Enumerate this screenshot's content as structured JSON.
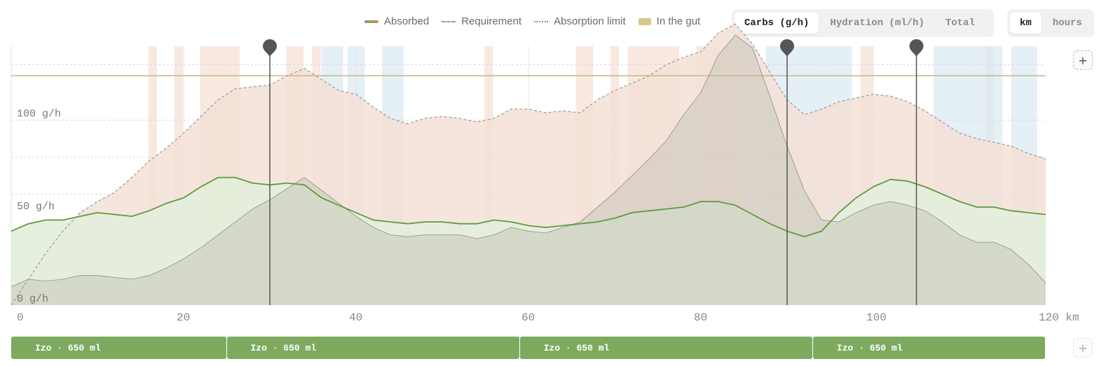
{
  "legend": {
    "absorbed": "Absorbed",
    "requirement": "Requirement",
    "absorption_limit": "Absorption limit",
    "in_the_gut": "In the gut"
  },
  "metric_tabs": [
    {
      "label": "Carbs (g/h)",
      "active": true
    },
    {
      "label": "Hydration (ml/h)",
      "active": false
    },
    {
      "label": "Total",
      "active": false
    }
  ],
  "axis_tabs": [
    {
      "label": "km",
      "active": true
    },
    {
      "label": "hours",
      "active": false
    }
  ],
  "add_label": "+",
  "colors": {
    "absorbed_line": "#5e9a3c",
    "requirement_line": "#9a9a9a",
    "gut_fill": "#bfbfb4",
    "requirement_fill": "#f3e0d6",
    "absorbed_fill": "#e3eedb",
    "limit_line": "#c9b58a",
    "pin": "#555555",
    "hot_band": "#f6e2d6",
    "cool_band": "#dceaf3",
    "bottle": "#7daa5e"
  },
  "chart_data": {
    "type": "area",
    "xlim": [
      0,
      120
    ],
    "ylim": [
      0,
      140
    ],
    "x_unit": "km",
    "x_ticks": [
      {
        "value": 0,
        "label": "0"
      },
      {
        "value": 20,
        "label": "20"
      },
      {
        "value": 40,
        "label": "40"
      },
      {
        "value": 60,
        "label": "60"
      },
      {
        "value": 80,
        "label": "80"
      },
      {
        "value": 100,
        "label": "100"
      },
      {
        "value": 120,
        "label": "120 km"
      }
    ],
    "y_ticks": [
      {
        "value": 0,
        "label": "0 g/h"
      },
      {
        "value": 50,
        "label": "50 g/h"
      },
      {
        "value": 100,
        "label": "100 g/h"
      }
    ],
    "absorption_limit": 124,
    "x": [
      0,
      2,
      4,
      6,
      8,
      10,
      12,
      14,
      16,
      18,
      20,
      22,
      24,
      26,
      28,
      30,
      32,
      34,
      36,
      38,
      40,
      42,
      44,
      46,
      48,
      50,
      52,
      54,
      56,
      58,
      60,
      62,
      64,
      66,
      68,
      70,
      72,
      74,
      76,
      78,
      80,
      82,
      84,
      86,
      88,
      90,
      92,
      94,
      96,
      98,
      100,
      102,
      104,
      106,
      108,
      110,
      112,
      114,
      116,
      118,
      120
    ],
    "series": [
      {
        "name": "Requirement",
        "values": [
          0,
          14,
          28,
          40,
          50,
          56,
          61,
          69,
          78,
          85,
          93,
          102,
          111,
          117,
          118,
          119,
          124,
          128,
          122,
          116,
          114,
          107,
          101,
          98,
          101,
          102,
          101,
          99,
          101,
          106,
          106,
          104,
          105,
          104,
          111,
          116,
          120,
          124,
          130,
          134,
          137,
          147,
          152,
          141,
          126,
          111,
          103,
          106,
          110,
          112,
          114,
          113,
          110,
          105,
          99,
          93,
          90,
          88,
          86,
          82,
          79
        ]
      },
      {
        "name": "Absorbed",
        "values": [
          40,
          44,
          46,
          46,
          48,
          50,
          49,
          48,
          51,
          55,
          58,
          64,
          69,
          69,
          66,
          65,
          66,
          65,
          58,
          54,
          50,
          46,
          45,
          44,
          45,
          45,
          44,
          44,
          46,
          45,
          43,
          42,
          43,
          44,
          45,
          47,
          50,
          51,
          52,
          53,
          56,
          56,
          54,
          49,
          44,
          40,
          37,
          40,
          50,
          58,
          64,
          68,
          67,
          64,
          60,
          56,
          53,
          53,
          51,
          50,
          49
        ]
      },
      {
        "name": "In the gut",
        "values": [
          10,
          14,
          13,
          14,
          16,
          16,
          15,
          14,
          16,
          20,
          25,
          31,
          38,
          45,
          52,
          57,
          63,
          69,
          62,
          55,
          48,
          42,
          38,
          37,
          38,
          38,
          38,
          36,
          38,
          42,
          40,
          39,
          42,
          45,
          53,
          61,
          70,
          79,
          89,
          103,
          115,
          135,
          146,
          139,
          113,
          86,
          62,
          46,
          45,
          50,
          54,
          56,
          54,
          51,
          45,
          38,
          34,
          34,
          30,
          22,
          12
        ]
      },
      {
        "name": "Bottles",
        "values": [
          {
            "label": "Izo · 650 ml",
            "start": 0,
            "end": 25
          },
          {
            "label": "Izo · 650 ml",
            "start": 25,
            "end": 59
          },
          {
            "label": "Izo · 650 ml",
            "start": 59,
            "end": 93
          },
          {
            "label": "Izo · 650 ml",
            "start": 93,
            "end": 120
          }
        ]
      }
    ],
    "pins_km": [
      30,
      90,
      105
    ],
    "hot_bands_km": [
      [
        15.9,
        16.9
      ],
      [
        18.9,
        19.9
      ],
      [
        21.9,
        26.5
      ],
      [
        31.9,
        33.9
      ],
      [
        34.9,
        35.9
      ],
      [
        54.9,
        55.9
      ],
      [
        65.5,
        67.5
      ],
      [
        69.5,
        70.5
      ],
      [
        71.5,
        77.5
      ],
      [
        79.5,
        84.5
      ],
      [
        98.5,
        100
      ],
      [
        113,
        114
      ]
    ],
    "cool_bands_km": [
      [
        36,
        38.5
      ],
      [
        39,
        41
      ],
      [
        43,
        45.5
      ],
      [
        87.5,
        97.5
      ],
      [
        107,
        115
      ],
      [
        116,
        119
      ]
    ]
  },
  "bottles": [
    {
      "label": "Izo · 650 ml"
    },
    {
      "label": "Izo · 650 ml"
    },
    {
      "label": "Izo · 650 ml"
    },
    {
      "label": "Izo · 650 ml"
    }
  ]
}
